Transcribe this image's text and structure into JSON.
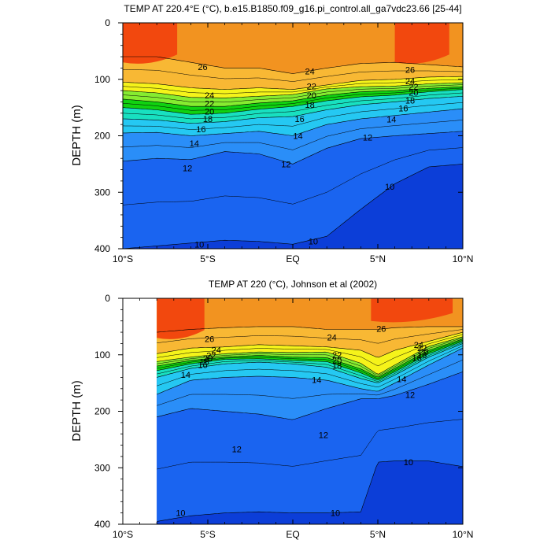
{
  "chart_data": [
    {
      "type": "heatmap",
      "subtype": "filled-contour depth section",
      "title": "TEMP AT 220.4°E (°C), b.e15.B1850.f09_g16.pi_control.all_ga7vdc23.66 [25-44]",
      "xlabel": "",
      "ylabel": "DEPTH (m)",
      "x_tick_labels": [
        "10°S",
        "5°S",
        "EQ",
        "5°N",
        "10°N"
      ],
      "x_ticks_deg": [
        -10,
        -5,
        0,
        5,
        10
      ],
      "xlim": [
        -10,
        10
      ],
      "y_tick_labels": [
        "0",
        "100",
        "200",
        "300",
        "400"
      ],
      "y_ticks": [
        0,
        100,
        200,
        300,
        400
      ],
      "ylim": [
        400,
        0
      ],
      "y_inverted": true,
      "data_extent_lat": [
        -10,
        10
      ],
      "contour_interval": 1,
      "contour_levels": [
        10,
        11,
        12,
        13,
        14,
        15,
        16,
        17,
        18,
        19,
        20,
        21,
        22,
        23,
        24,
        25,
        26,
        27
      ],
      "contour_labels": [
        {
          "text": "26",
          "lat": -5.3,
          "depth": 78
        },
        {
          "text": "24",
          "lat": -4.9,
          "depth": 128
        },
        {
          "text": "22",
          "lat": -4.9,
          "depth": 143
        },
        {
          "text": "20",
          "lat": -4.9,
          "depth": 157
        },
        {
          "text": "18",
          "lat": -5.0,
          "depth": 170
        },
        {
          "text": "16",
          "lat": -5.4,
          "depth": 188
        },
        {
          "text": "14",
          "lat": -5.8,
          "depth": 213
        },
        {
          "text": "12",
          "lat": -6.2,
          "depth": 257
        },
        {
          "text": "24",
          "lat": 1.0,
          "depth": 86
        },
        {
          "text": "22",
          "lat": 1.1,
          "depth": 112
        },
        {
          "text": "20",
          "lat": 1.1,
          "depth": 128
        },
        {
          "text": "18",
          "lat": 1.0,
          "depth": 145
        },
        {
          "text": "16",
          "lat": 0.4,
          "depth": 170
        },
        {
          "text": "14",
          "lat": 0.3,
          "depth": 200
        },
        {
          "text": "12",
          "lat": -0.4,
          "depth": 250
        },
        {
          "text": "26",
          "lat": 6.9,
          "depth": 83
        },
        {
          "text": "24",
          "lat": 6.9,
          "depth": 103
        },
        {
          "text": "22",
          "lat": 7.1,
          "depth": 113
        },
        {
          "text": "20",
          "lat": 7.1,
          "depth": 123
        },
        {
          "text": "18",
          "lat": 6.9,
          "depth": 137
        },
        {
          "text": "16",
          "lat": 6.5,
          "depth": 151
        },
        {
          "text": "14",
          "lat": 5.8,
          "depth": 171
        },
        {
          "text": "12",
          "lat": 4.4,
          "depth": 203
        },
        {
          "text": "10",
          "lat": 5.7,
          "depth": 290
        },
        {
          "text": "10",
          "lat": 1.2,
          "depth": 387
        },
        {
          "text": "10",
          "lat": -5.5,
          "depth": 392
        }
      ],
      "isotherm_depths": {
        "lat": [
          -10,
          -8,
          -6,
          -4,
          -2,
          0,
          2,
          4,
          6,
          8,
          10
        ],
        "t26": [
          60,
          60,
          70,
          80,
          80,
          90,
          80,
          72,
          70,
          74,
          78
        ],
        "t24": [
          105,
          108,
          115,
          118,
          115,
          118,
          110,
          102,
          100,
          96,
          95
        ],
        "t22": [
          120,
          124,
          132,
          133,
          130,
          127,
          117,
          113,
          112,
          108,
          106
        ],
        "t20": [
          135,
          140,
          148,
          148,
          142,
          138,
          128,
          122,
          120,
          116,
          113
        ],
        "t18": [
          150,
          154,
          162,
          160,
          153,
          148,
          138,
          131,
          128,
          122,
          118
        ],
        "t16": [
          170,
          172,
          178,
          175,
          168,
          166,
          154,
          145,
          140,
          134,
          130
        ],
        "t14": [
          195,
          194,
          200,
          196,
          192,
          200,
          180,
          170,
          164,
          158,
          152
        ],
        "t12": [
          245,
          240,
          242,
          228,
          232,
          250,
          222,
          205,
          200,
          196,
          192
        ],
        "t10": [
          400,
          395,
          390,
          385,
          387,
          392,
          378,
          330,
          285,
          255,
          250
        ]
      }
    },
    {
      "type": "heatmap",
      "subtype": "filled-contour depth section (observations)",
      "title": "TEMP AT 220 (°C), Johnson et al (2002)",
      "xlabel": "",
      "ylabel": "DEPTH (m)",
      "x_tick_labels": [
        "10°S",
        "5°S",
        "EQ",
        "5°N",
        "10°N"
      ],
      "x_ticks_deg": [
        -10,
        -5,
        0,
        5,
        10
      ],
      "xlim": [
        -10,
        10
      ],
      "y_tick_labels": [
        "0",
        "100",
        "200",
        "300",
        "400"
      ],
      "y_ticks": [
        0,
        100,
        200,
        300,
        400
      ],
      "ylim": [
        400,
        0
      ],
      "y_inverted": true,
      "data_extent_lat": [
        -8,
        10
      ],
      "contour_interval": 1,
      "contour_levels": [
        10,
        11,
        12,
        13,
        14,
        15,
        16,
        17,
        18,
        19,
        20,
        21,
        22,
        23,
        24,
        25,
        26,
        27
      ],
      "contour_labels": [
        {
          "text": "26",
          "lat": -4.9,
          "depth": 72
        },
        {
          "text": "24",
          "lat": -4.5,
          "depth": 91
        },
        {
          "text": "22",
          "lat": -4.8,
          "depth": 101
        },
        {
          "text": "20",
          "lat": -5.0,
          "depth": 106
        },
        {
          "text": "18",
          "lat": -5.2,
          "depth": 112
        },
        {
          "text": "16",
          "lat": -5.3,
          "depth": 118
        },
        {
          "text": "14",
          "lat": -6.3,
          "depth": 135
        },
        {
          "text": "12",
          "lat": -3.3,
          "depth": 267
        },
        {
          "text": "26",
          "lat": 5.2,
          "depth": 54
        },
        {
          "text": "24",
          "lat": 2.3,
          "depth": 69
        },
        {
          "text": "22",
          "lat": 2.6,
          "depth": 100
        },
        {
          "text": "20",
          "lat": 2.6,
          "depth": 110
        },
        {
          "text": "18",
          "lat": 2.6,
          "depth": 119
        },
        {
          "text": "14",
          "lat": 1.4,
          "depth": 144
        },
        {
          "text": "12",
          "lat": 1.8,
          "depth": 242
        },
        {
          "text": "24",
          "lat": 7.4,
          "depth": 82
        },
        {
          "text": "22",
          "lat": 7.6,
          "depth": 88
        },
        {
          "text": "20",
          "lat": 7.7,
          "depth": 94
        },
        {
          "text": "18",
          "lat": 7.6,
          "depth": 100
        },
        {
          "text": "16",
          "lat": 7.3,
          "depth": 105
        },
        {
          "text": "14",
          "lat": 6.4,
          "depth": 143
        },
        {
          "text": "12",
          "lat": 6.9,
          "depth": 171
        },
        {
          "text": "10",
          "lat": 6.8,
          "depth": 290
        },
        {
          "text": "10",
          "lat": -6.6,
          "depth": 380
        },
        {
          "text": "10",
          "lat": 2.5,
          "depth": 380
        }
      ],
      "isotherm_depths": {
        "lat": [
          -8,
          -6,
          -4,
          -2,
          0,
          2,
          4,
          5,
          6,
          8,
          10
        ],
        "t26": [
          60,
          55,
          52,
          50,
          50,
          55,
          55,
          55,
          52,
          50,
          50
        ],
        "t24": [
          98,
          88,
          86,
          82,
          84,
          86,
          92,
          105,
          92,
          76,
          60
        ],
        "t22": [
          112,
          104,
          98,
          95,
          96,
          95,
          115,
          135,
          118,
          85,
          68
        ],
        "t20": [
          120,
          110,
          104,
          101,
          104,
          105,
          125,
          140,
          124,
          92,
          72
        ],
        "t18": [
          128,
          116,
          108,
          107,
          110,
          112,
          132,
          145,
          130,
          98,
          76
        ],
        "t16": [
          140,
          124,
          116,
          113,
          116,
          122,
          142,
          150,
          136,
          104,
          80
        ],
        "t14": [
          170,
          145,
          140,
          138,
          140,
          145,
          160,
          165,
          150,
          118,
          88
        ],
        "t12": [
          210,
          195,
          200,
          205,
          215,
          195,
          178,
          178,
          172,
          152,
          130
        ],
        "t10": [
          395,
          385,
          380,
          378,
          380,
          380,
          378,
          290,
          288,
          288,
          298
        ]
      }
    }
  ]
}
